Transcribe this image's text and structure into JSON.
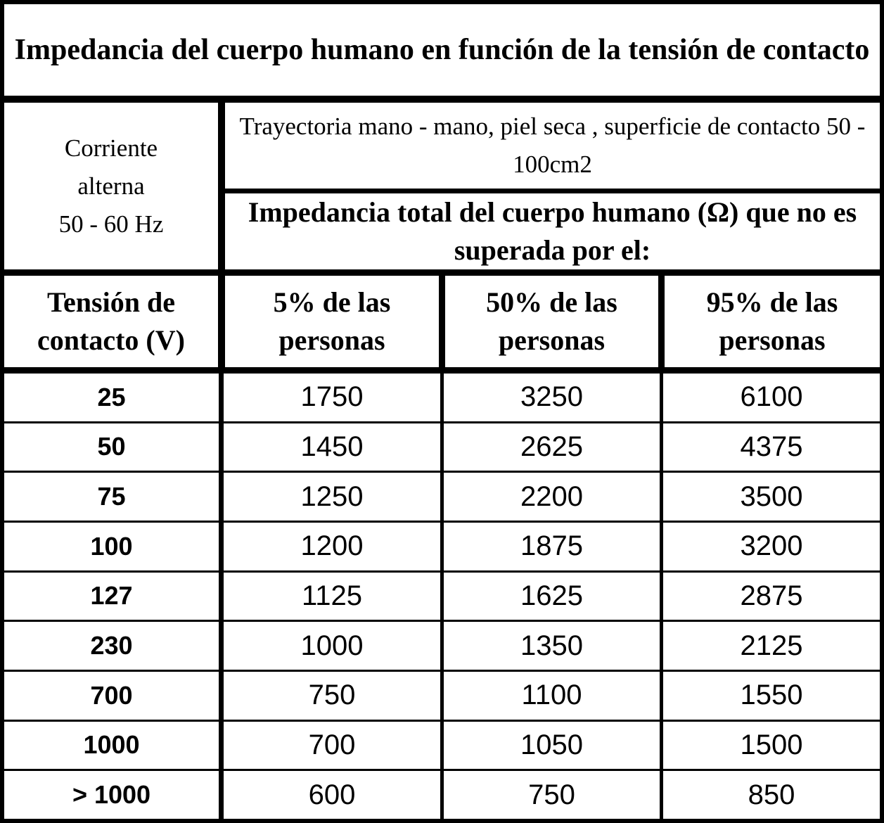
{
  "title": "Impedancia del cuerpo humano en función de la tensión de contacto",
  "current": {
    "lines": [
      "Corriente",
      "alterna",
      "50 - 60 Hz"
    ]
  },
  "path": "Trayectoria mano - mano, piel seca , superficie de contacto 50 - 100cm2",
  "impedance_header": "Impedancia total del cuerpo humano (Ω) que no es superada por el:",
  "table": {
    "columns": [
      "Tensión de contacto (V)",
      "5% de las personas",
      "50% de las personas",
      "95% de las personas"
    ],
    "rows": [
      [
        25,
        1750,
        3250,
        6100
      ],
      [
        50,
        1450,
        2625,
        4375
      ],
      [
        75,
        1250,
        2200,
        3500
      ],
      [
        100,
        1200,
        1875,
        3200
      ],
      [
        127,
        1125,
        1625,
        2875
      ],
      [
        230,
        1000,
        1350,
        2125
      ],
      [
        700,
        750,
        1100,
        1550
      ],
      [
        1000,
        700,
        1050,
        1500
      ],
      [
        "> 1000",
        600,
        750,
        850
      ]
    ]
  }
}
